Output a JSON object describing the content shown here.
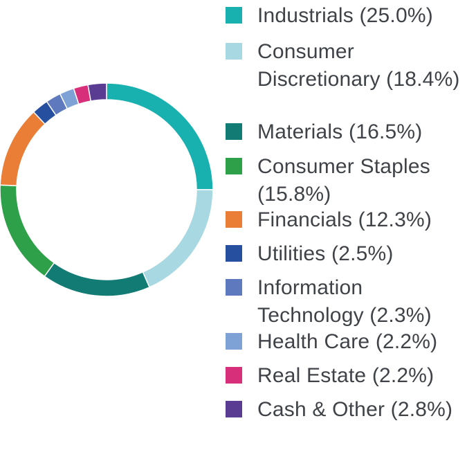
{
  "chart_data": {
    "type": "pie",
    "subtype": "donut",
    "legend_position": "right",
    "slices": [
      {
        "label": "Industrials (25.0%)",
        "value": 25.0,
        "color": "#19B1B0"
      },
      {
        "label": "Consumer Discretionary (18.4%)",
        "value": 18.4,
        "color": "#A8D8E1"
      },
      {
        "label": "Materials (16.5%)",
        "value": 16.5,
        "color": "#127B74"
      },
      {
        "label": "Consumer Staples (15.8%)",
        "value": 15.8,
        "color": "#2EA04A"
      },
      {
        "label": "Financials (12.3%)",
        "value": 12.3,
        "color": "#EB7E36"
      },
      {
        "label": "Utilities (2.5%)",
        "value": 2.5,
        "color": "#274F9F"
      },
      {
        "label": "Information Technology (2.3%)",
        "value": 2.3,
        "color": "#5E79BD"
      },
      {
        "label": "Health Care (2.2%)",
        "value": 2.2,
        "color": "#7FA2D6"
      },
      {
        "label": "Real Estate (2.2%)",
        "value": 2.2,
        "color": "#D72F7A"
      },
      {
        "label": "Cash & Other (2.8%)",
        "value": 2.8,
        "color": "#5A3C93"
      }
    ]
  }
}
